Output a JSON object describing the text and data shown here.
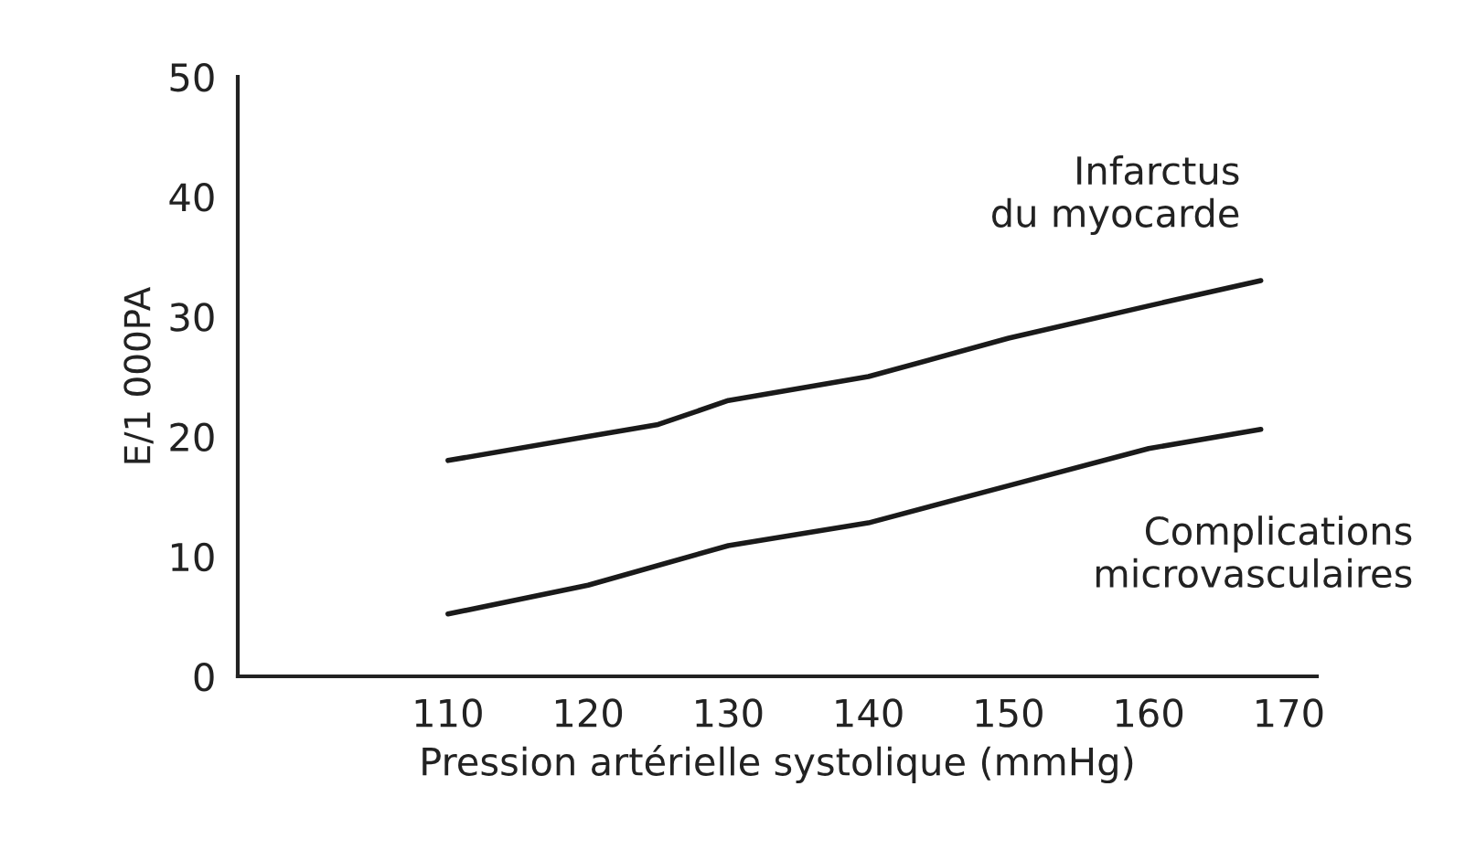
{
  "chart_data": {
    "type": "line",
    "xlabel": "Pression artérielle systolique (mmHg)",
    "ylabel": "E/1 000PA",
    "series": [
      {
        "name": "Infarctus\ndu myocarde",
        "color": "#1a1a1a",
        "x": [
          110,
          120,
          125,
          130,
          140,
          150,
          160,
          168
        ],
        "values": [
          18,
          20,
          21,
          23,
          25,
          28.2,
          30.9,
          33
        ]
      },
      {
        "name": "Complications\nmicrovasculaires",
        "color": "#1a1a1a",
        "x": [
          110,
          120,
          130,
          140,
          150,
          160,
          168
        ],
        "values": [
          5.2,
          7.6,
          10.9,
          12.8,
          15.9,
          19,
          20.6
        ]
      }
    ],
    "xlim": [
      95,
      172
    ],
    "xticks": [
      110,
      120,
      130,
      140,
      150,
      160,
      170
    ],
    "ylim": [
      0,
      50
    ],
    "yticks": [
      0,
      10,
      20,
      30,
      40,
      50
    ],
    "grid": false,
    "legend": false,
    "marker": "none",
    "line_style": "solid"
  }
}
